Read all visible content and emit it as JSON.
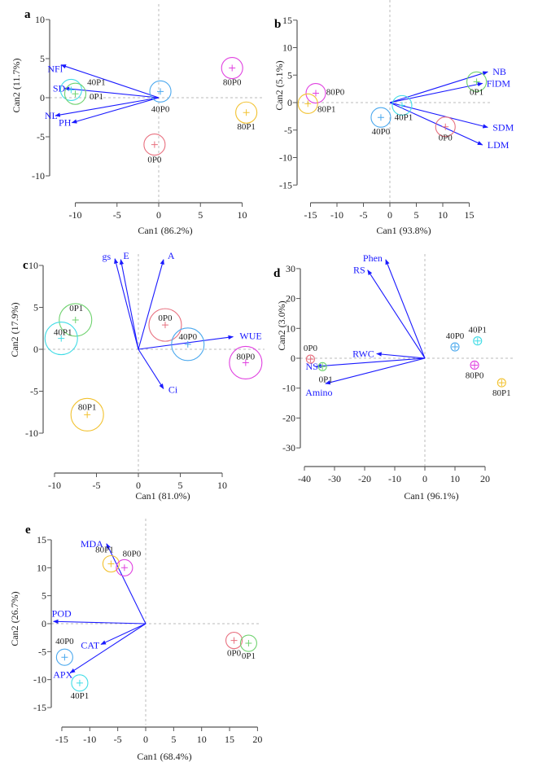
{
  "colors": {
    "0P0": "#e8707f",
    "0P1": "#6fd26f",
    "40P0": "#4aa8ee",
    "40P1": "#40dce6",
    "80P0": "#e040e0",
    "80P1": "#f2c230",
    "arrow": "#1a1aff",
    "axis": "#555555",
    "zero": "#bbbbbb"
  },
  "chart_data": [
    {
      "type": "scatter",
      "panel": "a",
      "xlabel": "Can1 (86.2%)",
      "ylabel": "Can2 (11.7%)",
      "xticks": [
        -10,
        -5,
        0,
        5,
        10
      ],
      "yticks": [
        10,
        5,
        0,
        -5,
        -10
      ],
      "points": [
        {
          "label": "40P1",
          "x": -10.5,
          "y": 1.0
        },
        {
          "label": "0P1",
          "x": -10.0,
          "y": 0.5
        },
        {
          "label": "40P0",
          "x": 0.2,
          "y": 0.8
        },
        {
          "label": "80P0",
          "x": 8.8,
          "y": 3.8
        },
        {
          "label": "80P1",
          "x": 10.5,
          "y": -1.9
        },
        {
          "label": "0P0",
          "x": -0.5,
          "y": -6.0
        }
      ],
      "vectors": [
        {
          "label": "NFl",
          "x": -11.7,
          "y": 4.2
        },
        {
          "label": "SD",
          "x": -11.3,
          "y": 1.2
        },
        {
          "label": "NL",
          "x": -12.4,
          "y": -2.3
        },
        {
          "label": "PH",
          "x": -10.4,
          "y": -3.2
        }
      ]
    },
    {
      "type": "scatter",
      "panel": "b",
      "xlabel": "Can1 (93.8%)",
      "ylabel": "Can2 (5.1%)",
      "xticks": [
        -15,
        -10,
        -5,
        0,
        5,
        10,
        15
      ],
      "yticks": [
        15,
        10,
        5,
        0,
        -5,
        -10,
        -15
      ],
      "points": [
        {
          "label": "80P0",
          "x": -14.0,
          "y": 1.7
        },
        {
          "label": "80P1",
          "x": -15.5,
          "y": -0.2
        },
        {
          "label": "40P0",
          "x": -1.7,
          "y": -2.7
        },
        {
          "label": "40P1",
          "x": 2.3,
          "y": -0.5
        },
        {
          "label": "0P0",
          "x": 10.5,
          "y": -4.4
        },
        {
          "label": "0P1",
          "x": 16.4,
          "y": 3.8
        }
      ],
      "vectors": [
        {
          "label": "NB",
          "x": 18.5,
          "y": 5.6
        },
        {
          "label": "FlDM",
          "x": 17.5,
          "y": 3.5
        },
        {
          "label": "SDM",
          "x": 18.5,
          "y": -4.5
        },
        {
          "label": "LDM",
          "x": 17.5,
          "y": -7.7
        }
      ]
    },
    {
      "type": "scatter",
      "panel": "c",
      "xlabel": "Can1 (81.0%)",
      "ylabel": "Can2 (17.9%)",
      "xticks": [
        -10,
        -5,
        0,
        5,
        10
      ],
      "yticks": [
        10,
        5,
        0,
        -5,
        -10
      ],
      "points": [
        {
          "label": "0P1",
          "x": -7.5,
          "y": 3.5
        },
        {
          "label": "40P1",
          "x": -9.2,
          "y": 1.3
        },
        {
          "label": "0P0",
          "x": 3.2,
          "y": 2.9
        },
        {
          "label": "40P0",
          "x": 5.9,
          "y": 0.6
        },
        {
          "label": "80P0",
          "x": 12.8,
          "y": -1.6
        },
        {
          "label": "80P1",
          "x": -6.1,
          "y": -7.8
        }
      ],
      "vectors": [
        {
          "label": "gs",
          "x": -2.8,
          "y": 10.8
        },
        {
          "label": "E",
          "x": -2.1,
          "y": 10.7
        },
        {
          "label": "A",
          "x": 3.0,
          "y": 10.7
        },
        {
          "label": "WUE",
          "x": 11.3,
          "y": 1.5
        },
        {
          "label": "Ci",
          "x": 3.0,
          "y": -4.7
        }
      ]
    },
    {
      "type": "scatter",
      "panel": "d",
      "xlabel": "Can1 (96.1%)",
      "ylabel": "Can2 (3.0%)",
      "xticks": [
        -40,
        -30,
        -20,
        -10,
        0,
        10,
        20
      ],
      "yticks": [
        30,
        20,
        10,
        0,
        -10,
        -20,
        -30
      ],
      "points": [
        {
          "label": "0P0",
          "x": -38,
          "y": -0.3
        },
        {
          "label": "0P1",
          "x": -34,
          "y": -2.8
        },
        {
          "label": "40P0",
          "x": 10,
          "y": 3.8
        },
        {
          "label": "40P1",
          "x": 17.5,
          "y": 5.8
        },
        {
          "label": "80P0",
          "x": 16.5,
          "y": -2.3
        },
        {
          "label": "80P1",
          "x": 25.5,
          "y": -8.2
        }
      ],
      "vectors": [
        {
          "label": "Phen",
          "x": -13,
          "y": 33
        },
        {
          "label": "RS",
          "x": -19,
          "y": 29.5
        },
        {
          "label": "RWC",
          "x": -16,
          "y": 1.5
        },
        {
          "label": "NS",
          "x": -36,
          "y": -2.7
        },
        {
          "label": "Amino",
          "x": -33,
          "y": -8.5
        }
      ]
    },
    {
      "type": "scatter",
      "panel": "e",
      "xlabel": "Can1 (68.4%)",
      "ylabel": "Can2 (26.7%)",
      "xticks": [
        -15,
        -10,
        -5,
        0,
        5,
        10,
        15,
        20
      ],
      "yticks": [
        15,
        10,
        5,
        0,
        -5,
        -10,
        -15
      ],
      "points": [
        {
          "label": "80P1",
          "x": -6.2,
          "y": 10.7
        },
        {
          "label": "80P0",
          "x": -3.8,
          "y": 10.0
        },
        {
          "label": "40P0",
          "x": -14.5,
          "y": -6.0
        },
        {
          "label": "40P1",
          "x": -11.8,
          "y": -10.6
        },
        {
          "label": "0P0",
          "x": 15.8,
          "y": -3.0
        },
        {
          "label": "0P1",
          "x": 18.4,
          "y": -3.5
        }
      ],
      "vectors": [
        {
          "label": "MDA",
          "x": -7,
          "y": 14.3
        },
        {
          "label": "POD",
          "x": -16.5,
          "y": 0.4
        },
        {
          "label": "CAT",
          "x": -8,
          "y": -3.7
        },
        {
          "label": "APX",
          "x": -13.5,
          "y": -8.8
        }
      ]
    }
  ]
}
